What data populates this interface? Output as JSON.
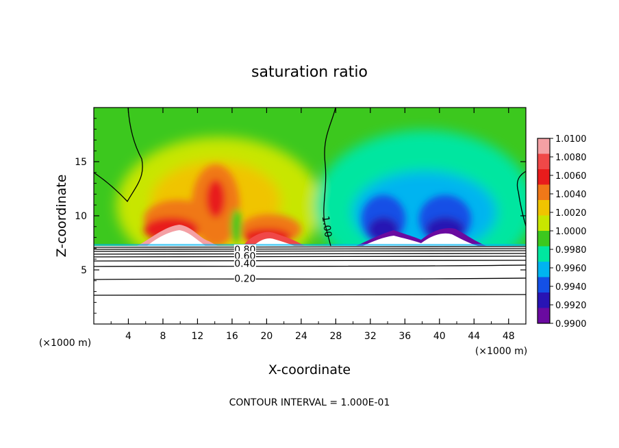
{
  "chart_data": {
    "type": "heatmap",
    "title": "saturation ratio",
    "xlabel": "X-coordinate",
    "ylabel": "Z-coordinate",
    "x_unit_left": "(×1000 m)",
    "x_unit_right": "(×1000 m)",
    "xlim": [
      0,
      50
    ],
    "ylim": [
      0,
      20
    ],
    "x_ticks": [
      4,
      8,
      12,
      16,
      20,
      24,
      28,
      32,
      36,
      40,
      44,
      48
    ],
    "y_ticks": [
      5,
      10,
      15
    ],
    "footer": "CONTOUR INTERVAL = 1.000E-01",
    "colorbar": {
      "levels": [
        "1.0100",
        "1.0080",
        "1.0060",
        "1.0040",
        "1.0020",
        "1.0000",
        "0.9980",
        "0.9960",
        "0.9940",
        "0.9920",
        "0.9900"
      ],
      "colors": [
        "#f4a0a4",
        "#f04848",
        "#e81c1c",
        "#f07818",
        "#f0c400",
        "#c8e600",
        "#3cc81e",
        "#00e6a0",
        "#00b4f0",
        "#1450e6",
        "#2814b4",
        "#6a0aa0"
      ]
    },
    "contour_labels": [
      {
        "text": "1.00",
        "x": 27,
        "y": 9
      },
      {
        "text": "0.80",
        "x": 17.5,
        "y": 6.9
      },
      {
        "text": "0.60",
        "x": 17.5,
        "y": 6.3
      },
      {
        "text": "0.40",
        "x": 17.5,
        "y": 5.6
      },
      {
        "text": "0.20",
        "x": 17.5,
        "y": 4.2
      }
    ],
    "lower_contours_z": [
      7.1,
      6.9,
      6.7,
      6.5,
      6.2,
      5.8,
      5.3,
      4.3,
      2.8
    ],
    "field_features": [
      {
        "type": "moist_max",
        "x": 14.5,
        "z": 12.5,
        "value": 1.008
      },
      {
        "type": "moist_max",
        "x": 20,
        "z": 9.2,
        "value": 1.006
      },
      {
        "type": "dry_min",
        "x": 34.5,
        "z": 10.5,
        "value": 0.9905
      },
      {
        "type": "dry_min",
        "x": 40.5,
        "z": 10.5,
        "value": 0.9905
      }
    ]
  }
}
